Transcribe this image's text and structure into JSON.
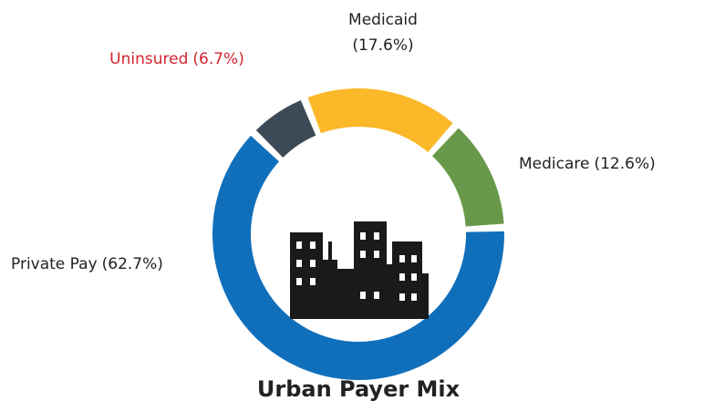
{
  "chart_data": {
    "type": "donut",
    "title": "Urban Payer Mix",
    "categories": [
      "Uninsured",
      "Medicaid",
      "Medicare",
      "Private Pay"
    ],
    "values": [
      6.7,
      17.6,
      12.6,
      62.7
    ],
    "value_labels": [
      "(6.7%)",
      "(17.6%)",
      "(12.6%)",
      "(62.7%)"
    ],
    "colors": [
      "#3b4a56",
      "#fbb829",
      "#68994a",
      "#106fbb"
    ],
    "label_colors": [
      "#d3242f",
      "#222222",
      "#222222",
      "#222222"
    ]
  }
}
